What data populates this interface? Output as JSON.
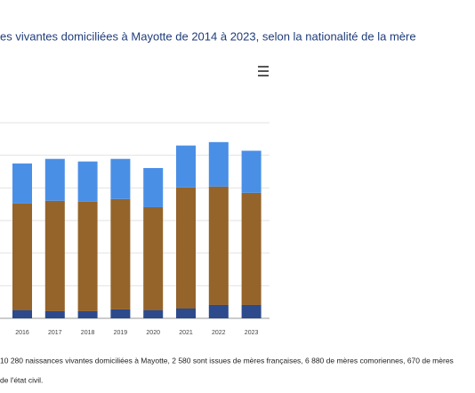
{
  "title": "es vivantes domiciliées à Mayotte de 2014 à 2023, selon la nationalité de la mère",
  "chart_data": {
    "type": "stacked_bar",
    "categories": [
      "2016",
      "2017",
      "2018",
      "2019",
      "2020",
      "2021",
      "2022",
      "2023"
    ],
    "series": [
      {
        "color": "#2c4a8c",
        "values": [
          490,
          440,
          440,
          550,
          490,
          600,
          820,
          820
        ]
      },
      {
        "color": "#94642a",
        "values": [
          6550,
          6770,
          6720,
          6770,
          6330,
          7430,
          7260,
          6880
        ]
      },
      {
        "color": "#4a8fe6",
        "values": [
          2460,
          2570,
          2460,
          2460,
          2400,
          2570,
          2730,
          2580
        ]
      }
    ],
    "ylim": [
      0,
      12000
    ],
    "yticks": [
      0,
      2000,
      4000,
      6000,
      8000,
      10000,
      12000
    ],
    "grid": true
  },
  "notes": [
    "10 280 naissances vivantes domiciliées à Mayotte, 2 580 sont issues de mères françaises, 6 880 de mères comoriennes, 670 de mères",
    "de l'état civil."
  ]
}
